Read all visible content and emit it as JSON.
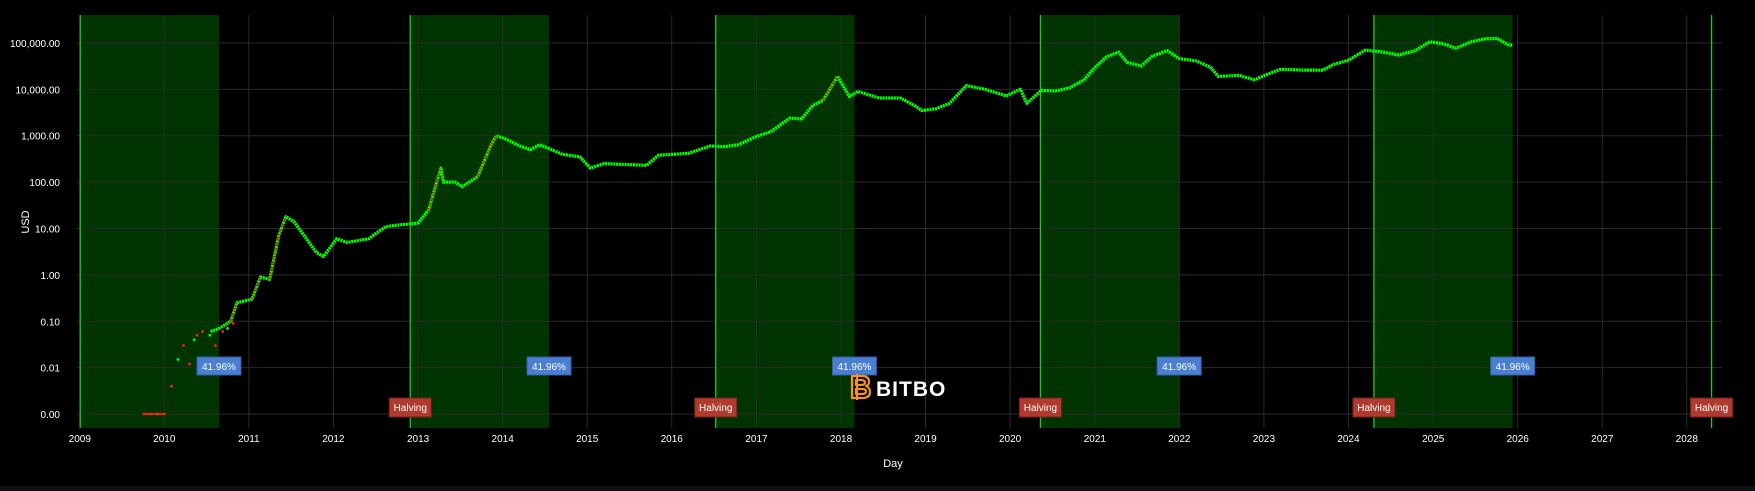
{
  "colors": {
    "background": "#000000",
    "grid": "#2a2a2a",
    "band_fill": "#003a00",
    "band_line": "#1ec81e",
    "price_up": "#00ff00",
    "price_down": "#ff2200",
    "axis_text": "#ffffff",
    "halving_label_bg": "#b03a2e",
    "percent_label_bg": "#4a7ed0",
    "logo_icon": "#f7931a",
    "logo_text": "#ffffff"
  },
  "chart_data": {
    "type": "scatter",
    "xlabel": "Day",
    "ylabel": "USD",
    "y_scale": "log",
    "ylim": [
      0.0005,
      400000
    ],
    "xlim": [
      "2008-12-20",
      "2028-06-01"
    ],
    "grid": true,
    "y_ticks": [
      {
        "value": 0.001,
        "label": "0.00"
      },
      {
        "value": 0.01,
        "label": "0.01"
      },
      {
        "value": 0.1,
        "label": "0.10"
      },
      {
        "value": 1,
        "label": "1.00"
      },
      {
        "value": 10,
        "label": "10.00"
      },
      {
        "value": 100,
        "label": "100.00"
      },
      {
        "value": 1000,
        "label": "1,000.00"
      },
      {
        "value": 10000,
        "label": "10,000.00"
      },
      {
        "value": 100000,
        "label": "100,000.00"
      }
    ],
    "x_ticks": [
      {
        "date": "2009-01-01",
        "label": "2009"
      },
      {
        "date": "2010-01-01",
        "label": "2010"
      },
      {
        "date": "2011-01-01",
        "label": "2011"
      },
      {
        "date": "2012-01-01",
        "label": "2012"
      },
      {
        "date": "2013-01-01",
        "label": "2013"
      },
      {
        "date": "2014-01-01",
        "label": "2014"
      },
      {
        "date": "2015-01-01",
        "label": "2015"
      },
      {
        "date": "2016-01-01",
        "label": "2016"
      },
      {
        "date": "2017-01-01",
        "label": "2017"
      },
      {
        "date": "2018-01-01",
        "label": "2018"
      },
      {
        "date": "2019-01-01",
        "label": "2019"
      },
      {
        "date": "2020-01-01",
        "label": "2020"
      },
      {
        "date": "2021-01-01",
        "label": "2021"
      },
      {
        "date": "2022-01-01",
        "label": "2022"
      },
      {
        "date": "2023-01-01",
        "label": "2023"
      },
      {
        "date": "2024-01-01",
        "label": "2024"
      },
      {
        "date": "2025-01-01",
        "label": "2025"
      },
      {
        "date": "2026-01-01",
        "label": "2026"
      },
      {
        "date": "2027-01-01",
        "label": "2027"
      },
      {
        "date": "2028-01-01",
        "label": "2028"
      }
    ],
    "bands": [
      {
        "start": "2009-01-03",
        "end": "2010-08-25",
        "percent_label": "41.96%"
      },
      {
        "start": "2012-11-28",
        "end": "2014-07-20",
        "percent_label": "41.96%"
      },
      {
        "start": "2016-07-09",
        "end": "2018-02-28",
        "percent_label": "41.96%"
      },
      {
        "start": "2020-05-11",
        "end": "2021-12-31",
        "percent_label": "41.96%"
      },
      {
        "start": "2024-04-20",
        "end": "2025-12-10",
        "percent_label": "41.96%"
      },
      {
        "start": "2028-04-17",
        "end": "2028-04-17",
        "percent_label": ""
      }
    ],
    "halvings": [
      {
        "date": "2012-11-28",
        "label": "Halving"
      },
      {
        "date": "2016-07-09",
        "label": "Halving"
      },
      {
        "date": "2020-05-11",
        "label": "Halving"
      },
      {
        "date": "2024-04-20",
        "label": "Halving"
      },
      {
        "date": "2028-04-17",
        "label": "Halving"
      }
    ],
    "series": [
      {
        "name": "",
        "type": "line",
        "x": [
          "2010-07-20",
          "2010-08-25",
          "2010-10-15",
          "2010-11-10",
          "2011-01-15",
          "2011-02-20",
          "2011-04-01",
          "2011-05-10",
          "2011-06-10",
          "2011-07-15",
          "2011-08-20",
          "2011-10-20",
          "2011-11-20",
          "2012-01-15",
          "2012-03-01",
          "2012-06-01",
          "2012-08-15",
          "2012-10-15",
          "2012-12-31",
          "2013-02-15",
          "2013-04-09",
          "2013-04-20",
          "2013-06-10",
          "2013-07-10",
          "2013-09-15",
          "2013-11-10",
          "2013-12-04",
          "2014-01-15",
          "2014-03-15",
          "2014-05-01",
          "2014-06-10",
          "2014-09-15",
          "2014-12-01",
          "2015-01-14",
          "2015-03-15",
          "2015-06-15",
          "2015-09-15",
          "2015-11-05",
          "2016-01-15",
          "2016-03-15",
          "2016-06-15",
          "2016-08-15",
          "2016-10-15",
          "2016-12-31",
          "2017-03-01",
          "2017-05-25",
          "2017-07-15",
          "2017-09-01",
          "2017-10-15",
          "2017-12-17",
          "2018-02-06",
          "2018-03-15",
          "2018-06-15",
          "2018-09-15",
          "2018-11-20",
          "2018-12-15",
          "2019-02-15",
          "2019-04-15",
          "2019-06-26",
          "2019-09-15",
          "2019-12-15",
          "2020-02-15",
          "2020-03-13",
          "2020-05-15",
          "2020-07-15",
          "2020-09-15",
          "2020-11-15",
          "2020-12-31",
          "2021-02-20",
          "2021-04-14",
          "2021-05-20",
          "2021-07-20",
          "2021-09-07",
          "2021-11-10",
          "2021-12-31",
          "2022-03-15",
          "2022-05-15",
          "2022-06-18",
          "2022-09-15",
          "2022-11-21",
          "2023-01-15",
          "2023-03-15",
          "2023-06-15",
          "2023-09-15",
          "2023-10-25",
          "2023-12-31",
          "2024-03-14",
          "2024-05-15",
          "2024-08-05",
          "2024-10-15",
          "2024-12-17",
          "2025-02-15",
          "2025-04-08",
          "2025-06-15",
          "2025-08-14",
          "2025-10-06",
          "2025-11-20",
          "2025-12-10"
        ],
        "y": [
          0.06,
          0.07,
          0.1,
          0.25,
          0.3,
          0.9,
          0.8,
          7,
          18,
          14,
          8,
          3,
          2.5,
          6,
          5,
          6,
          11,
          12,
          13,
          25,
          200,
          100,
          100,
          80,
          130,
          600,
          1000,
          850,
          600,
          500,
          640,
          400,
          350,
          200,
          250,
          240,
          230,
          380,
          400,
          420,
          600,
          580,
          640,
          960,
          1200,
          2400,
          2300,
          4500,
          5700,
          19000,
          7000,
          9000,
          6500,
          6500,
          4300,
          3500,
          3800,
          5000,
          12000,
          10000,
          7200,
          10000,
          5000,
          9500,
          9200,
          10800,
          16000,
          29000,
          50000,
          63000,
          38000,
          32000,
          52000,
          68000,
          46000,
          41000,
          30000,
          19000,
          20000,
          16000,
          21000,
          27000,
          26000,
          26000,
          34000,
          42000,
          70000,
          65000,
          55000,
          68000,
          106000,
          96000,
          77000,
          106000,
          123000,
          124000,
          91000,
          90000
        ]
      },
      {
        "name": "",
        "type": "points",
        "x": [
          "2009-10-05",
          "2009-11-01",
          "2009-12-01",
          "2010-01-01",
          "2010-02-01",
          "2010-03-01",
          "2010-03-25",
          "2010-04-20",
          "2010-05-10",
          "2010-05-22",
          "2010-06-15",
          "2010-07-17",
          "2010-08-10",
          "2010-09-10",
          "2010-10-01",
          "2010-10-25"
        ],
        "y": [
          0.001,
          0.001,
          0.001,
          0.001,
          0.004,
          0.015,
          0.03,
          0.012,
          0.04,
          0.05,
          0.06,
          0.05,
          0.03,
          0.06,
          0.07,
          0.09
        ]
      }
    ]
  },
  "watermark": {
    "icon": "bitcoin-b-icon",
    "text": "BITBO"
  }
}
